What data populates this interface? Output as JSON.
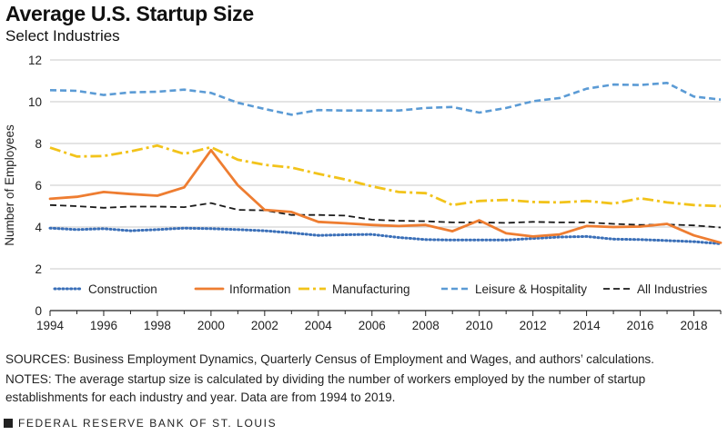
{
  "header": {
    "title": "Average U.S. Startup Size",
    "subtitle": "Select Industries"
  },
  "chart_data": {
    "type": "line",
    "title": "Average U.S. Startup Size",
    "subtitle": "Select Industries",
    "xlabel": "",
    "ylabel": "Number of Employees",
    "xlim": [
      1994,
      2019
    ],
    "ylim": [
      0,
      12
    ],
    "xticks": [
      1994,
      1996,
      1998,
      2000,
      2002,
      2004,
      2006,
      2008,
      2010,
      2012,
      2014,
      2016,
      2018
    ],
    "yticks": [
      0,
      2,
      4,
      6,
      8,
      10,
      12
    ],
    "grid": "horizontal",
    "legend_position": "bottom-inside",
    "x": [
      1994,
      1995,
      1996,
      1997,
      1998,
      1999,
      2000,
      2001,
      2002,
      2003,
      2004,
      2005,
      2006,
      2007,
      2008,
      2009,
      2010,
      2011,
      2012,
      2013,
      2014,
      2015,
      2016,
      2017,
      2018,
      2019
    ],
    "series": [
      {
        "name": "Construction",
        "color": "#3a6fb8",
        "style": "dotted",
        "values": [
          3.95,
          3.88,
          3.92,
          3.82,
          3.88,
          3.95,
          3.92,
          3.88,
          3.82,
          3.72,
          3.6,
          3.63,
          3.65,
          3.5,
          3.4,
          3.38,
          3.38,
          3.38,
          3.45,
          3.52,
          3.55,
          3.42,
          3.4,
          3.35,
          3.3,
          3.2
        ]
      },
      {
        "name": "Information",
        "color": "#ee7d31",
        "style": "solid",
        "values": [
          5.35,
          5.45,
          5.68,
          5.58,
          5.5,
          5.9,
          7.68,
          6.0,
          4.82,
          4.72,
          4.25,
          4.18,
          4.1,
          4.05,
          4.1,
          3.8,
          4.32,
          3.7,
          3.55,
          3.65,
          4.05,
          4.0,
          4.02,
          4.15,
          3.6,
          3.25
        ]
      },
      {
        "name": "Manufacturing",
        "color": "#f2c31a",
        "style": "dash-dot",
        "values": [
          7.8,
          7.38,
          7.4,
          7.62,
          7.9,
          7.5,
          7.82,
          7.22,
          6.98,
          6.85,
          6.55,
          6.28,
          5.95,
          5.68,
          5.62,
          5.05,
          5.25,
          5.3,
          5.2,
          5.18,
          5.25,
          5.12,
          5.38,
          5.18,
          5.05,
          5.0
        ]
      },
      {
        "name": "Leisure & Hospitality",
        "color": "#5b9bd5",
        "style": "dashed",
        "values": [
          10.55,
          10.52,
          10.32,
          10.45,
          10.48,
          10.58,
          10.42,
          9.95,
          9.65,
          9.38,
          9.6,
          9.58,
          9.58,
          9.58,
          9.7,
          9.75,
          9.48,
          9.7,
          10.02,
          10.18,
          10.62,
          10.82,
          10.8,
          10.9,
          10.25,
          10.1
        ]
      },
      {
        "name": "All Industries",
        "color": "#1a1a1a",
        "style": "dashed",
        "values": [
          5.05,
          5.0,
          4.92,
          4.98,
          4.98,
          4.95,
          5.15,
          4.82,
          4.8,
          4.58,
          4.58,
          4.55,
          4.35,
          4.3,
          4.28,
          4.22,
          4.22,
          4.2,
          4.25,
          4.22,
          4.22,
          4.15,
          4.1,
          4.12,
          4.08,
          3.98
        ]
      }
    ]
  },
  "footnotes": {
    "sources": "SOURCES: Business Employment Dynamics, Quarterly Census of Employment and Wages, and authors’ calculations.",
    "notes": "NOTES: The average startup size is calculated by dividing the number of workers employed by the number of startup establishments for each industry and year. Data are from 1994 to 2019."
  },
  "footer": {
    "publisher": "FEDERAL RESERVE BANK OF ST. LOUIS"
  }
}
